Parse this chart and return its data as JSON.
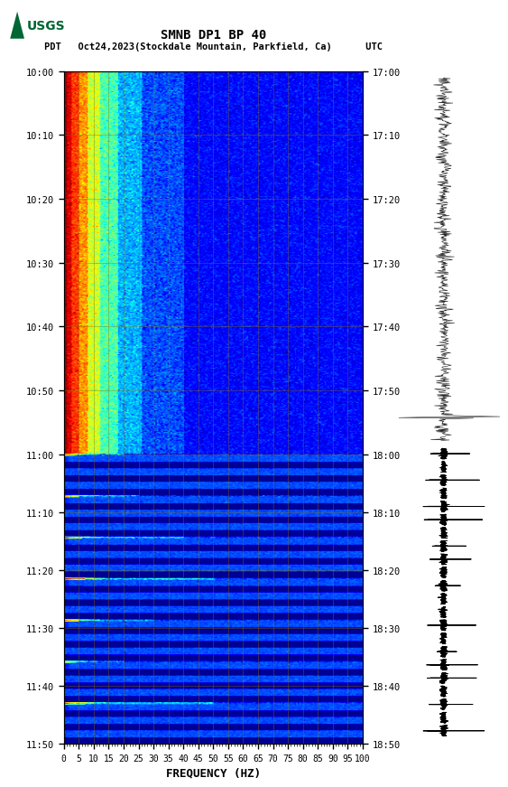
{
  "title_line1": "SMNB DP1 BP 40",
  "title_line2": "PDT   Oct24,2023(Stockdale Mountain, Parkfield, Ca)      UTC",
  "xlabel": "FREQUENCY (HZ)",
  "freq_ticks": [
    0,
    5,
    10,
    15,
    20,
    25,
    30,
    35,
    40,
    45,
    50,
    55,
    60,
    65,
    70,
    75,
    80,
    85,
    90,
    95,
    100
  ],
  "left_yticks": [
    "10:00",
    "10:10",
    "10:20",
    "10:30",
    "10:40",
    "10:50",
    "11:00",
    "11:10",
    "11:20",
    "11:30",
    "11:40",
    "11:50"
  ],
  "right_yticks": [
    "17:00",
    "17:10",
    "17:20",
    "17:30",
    "17:40",
    "17:50",
    "18:00",
    "18:10",
    "18:20",
    "18:30",
    "18:40",
    "18:50"
  ],
  "fig_width": 5.52,
  "fig_height": 8.92,
  "n_freq": 200,
  "upper_rows": 370,
  "lower_rows": 280,
  "grid_color": "#8B7000",
  "grid_alpha": 0.55,
  "grid_lw": 0.5
}
